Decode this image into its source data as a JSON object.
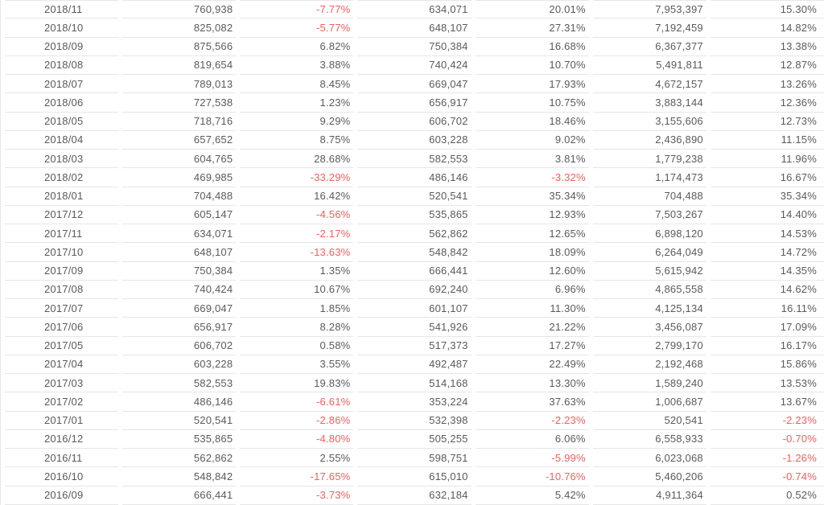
{
  "colors": {
    "text": "#5a5a5a",
    "negative_value": "#f85d5d",
    "row_border": "#e6e6e6",
    "background": "#ffffff"
  },
  "table": {
    "columns": [
      "month",
      "monthly-value",
      "mom-growth-pct",
      "same-month-prev-year-value",
      "yoy-growth-pct",
      "cumulative-value",
      "cumulative-growth-pct"
    ],
    "rows": [
      [
        "2018/11",
        "760,938",
        "-7.77%",
        "634,071",
        "20.01%",
        "7,953,397",
        "15.30%"
      ],
      [
        "2018/10",
        "825,082",
        "-5.77%",
        "648,107",
        "27.31%",
        "7,192,459",
        "14.82%"
      ],
      [
        "2018/09",
        "875,566",
        "6.82%",
        "750,384",
        "16.68%",
        "6,367,377",
        "13.38%"
      ],
      [
        "2018/08",
        "819,654",
        "3.88%",
        "740,424",
        "10.70%",
        "5,491,811",
        "12.87%"
      ],
      [
        "2018/07",
        "789,013",
        "8.45%",
        "669,047",
        "17.93%",
        "4,672,157",
        "13.26%"
      ],
      [
        "2018/06",
        "727,538",
        "1.23%",
        "656,917",
        "10.75%",
        "3,883,144",
        "12.36%"
      ],
      [
        "2018/05",
        "718,716",
        "9.29%",
        "606,702",
        "18.46%",
        "3,155,606",
        "12.73%"
      ],
      [
        "2018/04",
        "657,652",
        "8.75%",
        "603,228",
        "9.02%",
        "2,436,890",
        "11.15%"
      ],
      [
        "2018/03",
        "604,765",
        "28.68%",
        "582,553",
        "3.81%",
        "1,779,238",
        "11.96%"
      ],
      [
        "2018/02",
        "469,985",
        "-33.29%",
        "486,146",
        "-3.32%",
        "1,174,473",
        "16.67%"
      ],
      [
        "2018/01",
        "704,488",
        "16.42%",
        "520,541",
        "35.34%",
        "704,488",
        "35.34%"
      ],
      [
        "2017/12",
        "605,147",
        "-4.56%",
        "535,865",
        "12.93%",
        "7,503,267",
        "14.40%"
      ],
      [
        "2017/11",
        "634,071",
        "-2.17%",
        "562,862",
        "12.65%",
        "6,898,120",
        "14.53%"
      ],
      [
        "2017/10",
        "648,107",
        "-13.63%",
        "548,842",
        "18.09%",
        "6,264,049",
        "14.72%"
      ],
      [
        "2017/09",
        "750,384",
        "1.35%",
        "666,441",
        "12.60%",
        "5,615,942",
        "14.35%"
      ],
      [
        "2017/08",
        "740,424",
        "10.67%",
        "692,240",
        "6.96%",
        "4,865,558",
        "14.62%"
      ],
      [
        "2017/07",
        "669,047",
        "1.85%",
        "601,107",
        "11.30%",
        "4,125,134",
        "16.11%"
      ],
      [
        "2017/06",
        "656,917",
        "8.28%",
        "541,926",
        "21.22%",
        "3,456,087",
        "17.09%"
      ],
      [
        "2017/05",
        "606,702",
        "0.58%",
        "517,373",
        "17.27%",
        "2,799,170",
        "16.17%"
      ],
      [
        "2017/04",
        "603,228",
        "3.55%",
        "492,487",
        "22.49%",
        "2,192,468",
        "15.86%"
      ],
      [
        "2017/03",
        "582,553",
        "19.83%",
        "514,168",
        "13.30%",
        "1,589,240",
        "13.53%"
      ],
      [
        "2017/02",
        "486,146",
        "-6.61%",
        "353,224",
        "37.63%",
        "1,006,687",
        "13.67%"
      ],
      [
        "2017/01",
        "520,541",
        "-2.86%",
        "532,398",
        "-2.23%",
        "520,541",
        "-2.23%"
      ],
      [
        "2016/12",
        "535,865",
        "-4.80%",
        "505,255",
        "6.06%",
        "6,558,933",
        "-0.70%"
      ],
      [
        "2016/11",
        "562,862",
        "2.55%",
        "598,751",
        "-5.99%",
        "6,023,068",
        "-1.26%"
      ],
      [
        "2016/10",
        "548,842",
        "-17.65%",
        "615,010",
        "-10.76%",
        "5,460,206",
        "-0.74%"
      ],
      [
        "2016/09",
        "666,441",
        "-3.73%",
        "632,184",
        "5.42%",
        "4,911,364",
        "0.52%"
      ]
    ]
  }
}
